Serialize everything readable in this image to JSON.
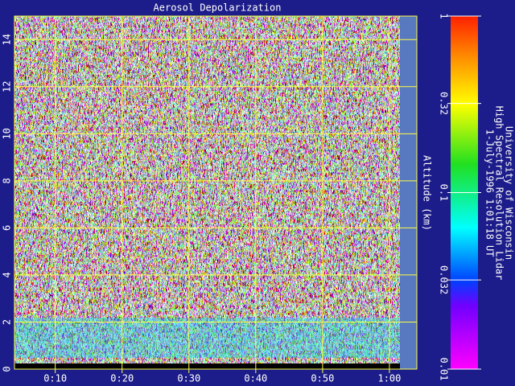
{
  "chart_data": {
    "type": "heatmap",
    "title": "Aerosol Depolarization",
    "y_label": "Altitude (km)",
    "xlim": [
      3.9,
      64.1
    ],
    "xticks": [
      {
        "value": 10,
        "label": "0:10"
      },
      {
        "value": 20,
        "label": "0:20"
      },
      {
        "value": 30,
        "label": "0:30"
      },
      {
        "value": 40,
        "label": "0:40"
      },
      {
        "value": 50,
        "label": "0:50"
      },
      {
        "value": 60,
        "label": "1:00"
      }
    ],
    "ylim": [
      0,
      15
    ],
    "yticks": [
      0,
      2,
      4,
      6,
      8,
      10,
      12,
      14
    ],
    "grid": true,
    "grid_color": "#ffff40",
    "colorbar": {
      "lim": [
        0.01,
        1
      ],
      "log": true,
      "ticks": [
        1,
        0.32,
        0.1,
        0.032,
        0.01
      ]
    },
    "annotations": [
      "University of Wisconsin",
      "High Spectral Resolution Lidar",
      "1-July-1996  1:01:18 UT"
    ]
  }
}
